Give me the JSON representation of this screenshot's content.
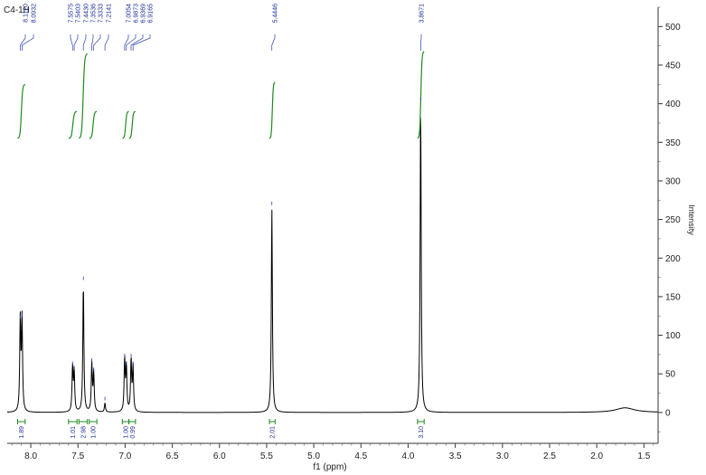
{
  "sample_label": "C4-1H",
  "chart_data": {
    "type": "line",
    "xlabel": "f1 (ppm)",
    "ylabel": "Intensity",
    "x_reversed": true,
    "xlim": [
      8.25,
      1.35
    ],
    "ylim": [
      -40,
      525
    ],
    "x_ticks": [
      8.0,
      7.5,
      7.0,
      6.5,
      6.0,
      5.5,
      5.0,
      4.5,
      4.0,
      3.5,
      3.0,
      2.5,
      2.0,
      1.5
    ],
    "x_tick_labels": [
      "8.0",
      "7.5",
      "7.0",
      "6.5",
      "6.0",
      "5.5",
      "5.0",
      "4.5",
      "4.0",
      "3.5",
      "3.0",
      "2.5",
      "2.0",
      "1.5"
    ],
    "y_ticks": [
      0,
      50,
      100,
      150,
      200,
      250,
      300,
      350,
      400,
      450,
      500
    ],
    "y_tick_labels": [
      "0",
      "50",
      "100",
      "150",
      "200",
      "250",
      "300",
      "350",
      "400",
      "450",
      "500"
    ],
    "grid": false,
    "series": [
      {
        "peaks": [
          {
            "x": 8.112,
            "y": 118
          },
          {
            "x": 8.0932,
            "y": 120
          },
          {
            "x": 7.5575,
            "y": 58
          },
          {
            "x": 7.5403,
            "y": 52
          },
          {
            "x": 7.443,
            "y": 168
          },
          {
            "x": 7.3536,
            "y": 62
          },
          {
            "x": 7.3333,
            "y": 50
          },
          {
            "x": 7.2141,
            "y": 12
          },
          {
            "x": 7.0054,
            "y": 68
          },
          {
            "x": 6.9873,
            "y": 58
          },
          {
            "x": 6.9369,
            "y": 68
          },
          {
            "x": 6.9165,
            "y": 58
          },
          {
            "x": 5.4446,
            "y": 265
          },
          {
            "x": 3.8671,
            "y": 400
          },
          {
            "x": 1.7,
            "y": 6
          }
        ]
      }
    ],
    "peak_labels": [
      "8.1120",
      "8.0932",
      "7.5575",
      "7.5403",
      "7.4430",
      "7.3536",
      "7.3333",
      "7.2141",
      "7.0054",
      "6.9873",
      "6.9369",
      "6.9165",
      "5.4446",
      "3.8671"
    ],
    "peak_label_positions": [
      8.112,
      8.0932,
      7.5575,
      7.5403,
      7.443,
      7.3536,
      7.3333,
      7.2141,
      7.0054,
      6.9873,
      6.9369,
      6.9165,
      5.4446,
      3.8671
    ],
    "integrals": [
      {
        "from": 8.14,
        "to": 8.06,
        "value": "1.89",
        "curve_low": 355,
        "curve_high": 425
      },
      {
        "from": 7.6,
        "to": 7.51,
        "value": "1.01",
        "curve_low": 355,
        "curve_high": 390
      },
      {
        "from": 7.49,
        "to": 7.4,
        "value": "2.98",
        "curve_low": 355,
        "curve_high": 465
      },
      {
        "from": 7.38,
        "to": 7.3,
        "value": "1.00",
        "curve_low": 355,
        "curve_high": 390
      },
      {
        "from": 7.03,
        "to": 6.96,
        "value": "1.00",
        "curve_low": 355,
        "curve_high": 390
      },
      {
        "from": 6.96,
        "to": 6.89,
        "value": "0.99",
        "curve_low": 355,
        "curve_high": 390
      },
      {
        "from": 5.47,
        "to": 5.41,
        "value": "2.01",
        "curve_low": 355,
        "curve_high": 428
      },
      {
        "from": 3.9,
        "to": 3.83,
        "value": "3.10",
        "curve_low": 355,
        "curve_high": 468
      }
    ]
  }
}
